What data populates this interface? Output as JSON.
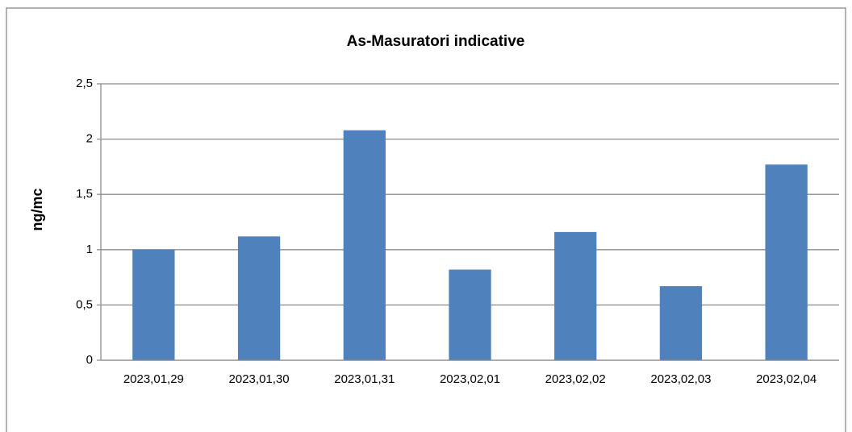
{
  "chart_data": {
    "type": "bar",
    "title": "As-Masuratori indicative",
    "y_label": "ng/mc",
    "categories": [
      "2023,01,29",
      "2023,01,30",
      "2023,01,31",
      "2023,02,01",
      "2023,02,02",
      "2023,02,03",
      "2023,02,04"
    ],
    "values": [
      1.0,
      1.12,
      2.08,
      0.82,
      1.16,
      0.67,
      1.77
    ],
    "color": "#4f81bd",
    "ylim": [
      0,
      2.5
    ],
    "yticks": [
      0,
      {
        "value": 0.5,
        "label": "0,5"
      },
      1,
      {
        "value": 1.5,
        "label": "1,5"
      },
      2,
      {
        "value": 2.5,
        "label": "2,5"
      }
    ],
    "grid": true
  }
}
